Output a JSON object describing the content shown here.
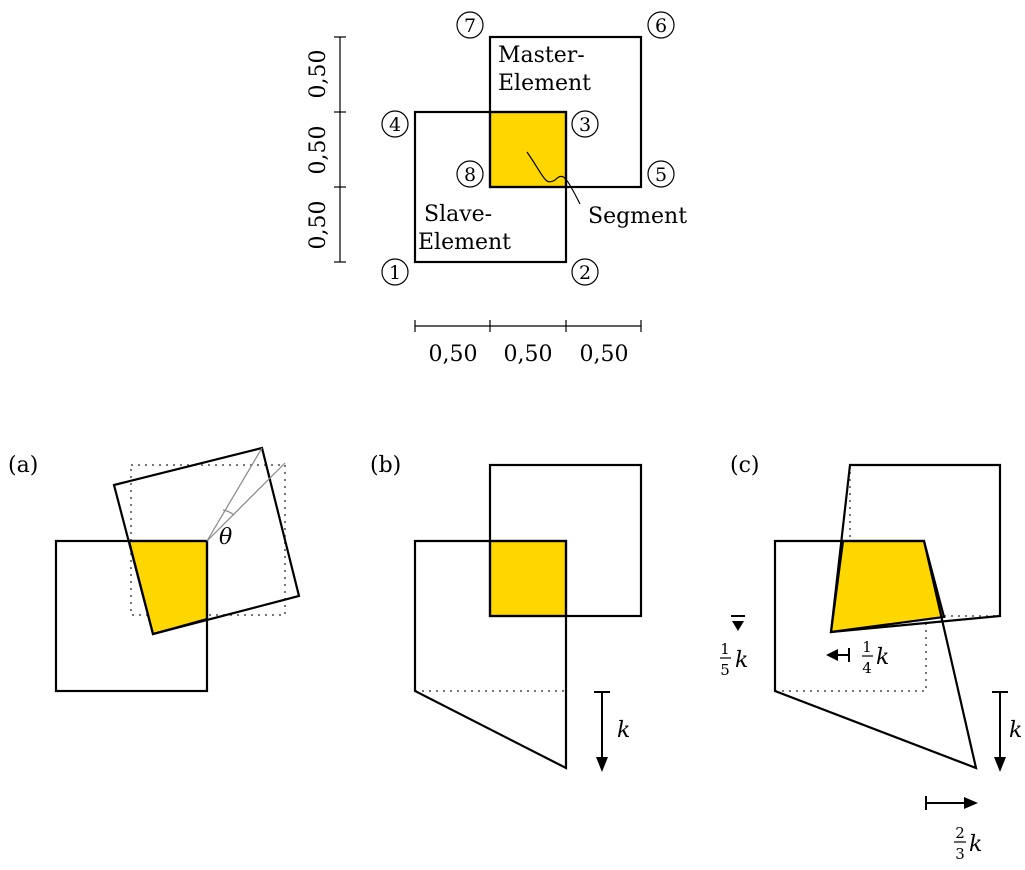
{
  "colors": {
    "overlap": "#FFD700",
    "line": "#000000",
    "dotted": "#777777"
  },
  "top": {
    "nodes": [
      "1",
      "2",
      "3",
      "4",
      "5",
      "6",
      "7",
      "8"
    ],
    "master_label": [
      "Master-",
      "Element"
    ],
    "slave_label": [
      "Slave-",
      "Element"
    ],
    "segment_label": "Segment",
    "dim_horizontal": [
      "0,50",
      "0,50",
      "0,50"
    ],
    "dim_vertical": [
      "0,50",
      "0,50",
      "0,50"
    ]
  },
  "panels": {
    "a": {
      "label": "(a)",
      "angle_symbol": "θ"
    },
    "b": {
      "label": "(b)",
      "k": "k"
    },
    "c": {
      "label": "(c)",
      "k": "k",
      "fifth": {
        "num": "1",
        "den": "5",
        "var": "k"
      },
      "quarter": {
        "num": "1",
        "den": "4",
        "var": "k"
      },
      "two_thirds": {
        "num": "2",
        "den": "3",
        "var": "k"
      }
    }
  }
}
